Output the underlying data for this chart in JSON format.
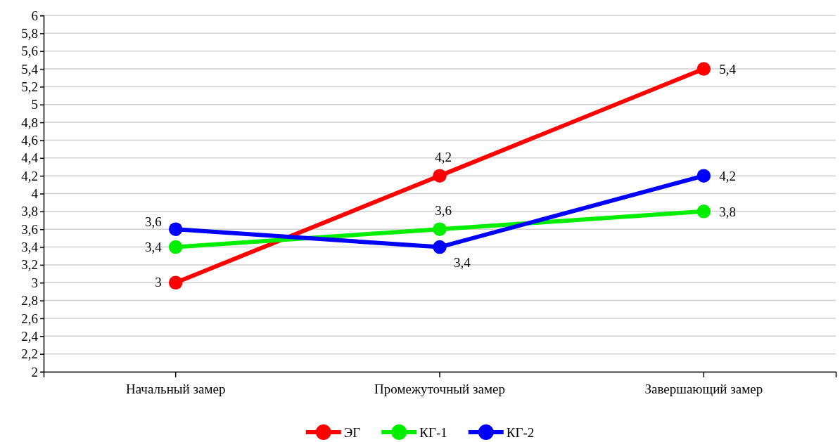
{
  "chart_data": {
    "type": "line",
    "categories": [
      "Начальный замер",
      "Промежуточный замер",
      "Завершающий замер"
    ],
    "series": [
      {
        "name": "ЭГ",
        "color": "#ff0000",
        "values": [
          3,
          4.2,
          5.4
        ],
        "value_labels": [
          "3",
          "4,2",
          "5,4"
        ]
      },
      {
        "name": "КГ-1",
        "color": "#00ee00",
        "values": [
          3.4,
          3.6,
          3.8
        ],
        "value_labels": [
          "3,4",
          "3,6",
          "3,8"
        ]
      },
      {
        "name": "КГ-2",
        "color": "#0000ff",
        "values": [
          3.6,
          3.4,
          4.2
        ],
        "value_labels": [
          "3,6",
          "3,4",
          "4,2"
        ]
      }
    ],
    "ylim": [
      2,
      6
    ],
    "yticks": [
      2,
      {
        "value": 2.2,
        "label": "2,2"
      },
      {
        "value": 2.4,
        "label": "2,4"
      },
      {
        "value": 2.6,
        "label": "2,6"
      },
      {
        "value": 2.8,
        "label": "2,8"
      },
      3,
      {
        "value": 3.2,
        "label": "3,2"
      },
      {
        "value": 3.4,
        "label": "3,4"
      },
      {
        "value": 3.6,
        "label": "3,6"
      },
      {
        "value": 3.8,
        "label": "3,8"
      },
      4,
      {
        "value": 4.2,
        "label": "4,2"
      },
      {
        "value": 4.4,
        "label": "4,4"
      },
      {
        "value": 4.6,
        "label": "4,6"
      },
      {
        "value": 4.8,
        "label": "4,8"
      },
      5,
      {
        "value": 5.2,
        "label": "5,2"
      },
      {
        "value": 5.4,
        "label": "5,4"
      },
      {
        "value": 5.6,
        "label": "5,6"
      },
      {
        "value": 5.8,
        "label": "5,8"
      },
      6
    ],
    "grid": "y",
    "legend": "bottom",
    "marker": "circle",
    "line_style": "solid"
  }
}
